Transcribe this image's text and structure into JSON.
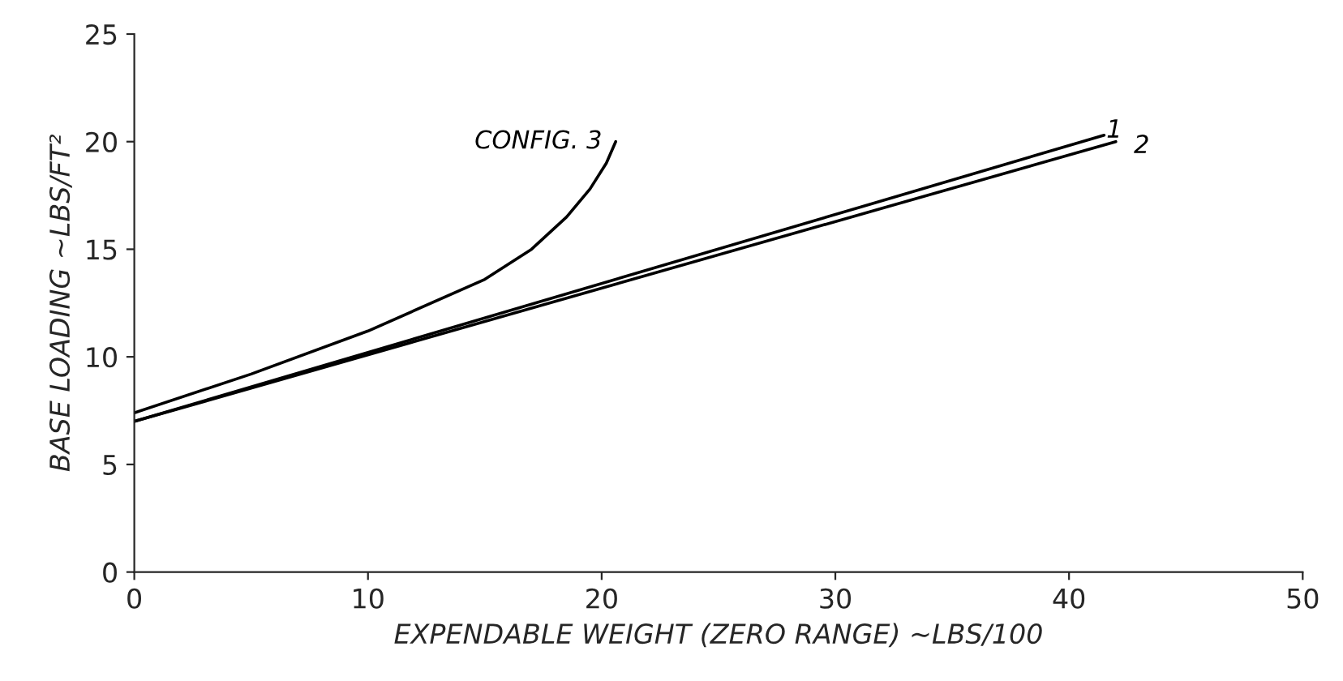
{
  "chart_data": {
    "type": "line",
    "xlabel": "EXPENDABLE WEIGHT (ZERO RANGE) ~LBS/100",
    "ylabel": "BASE LOADING ~LBS/FT²",
    "xlim": [
      0,
      50
    ],
    "xticks": [
      0,
      10,
      20,
      30,
      40,
      50
    ],
    "ylim": [
      0,
      25
    ],
    "yticks": [
      0,
      5,
      10,
      15,
      20,
      25
    ],
    "grid": false,
    "marker": "none",
    "line_style": "solid",
    "series": [
      {
        "name": "1",
        "color": "#000000",
        "x": [
          0,
          41.5
        ],
        "values": [
          7.0,
          20.3
        ]
      },
      {
        "name": "2",
        "color": "#000000",
        "x": [
          0,
          42
        ],
        "values": [
          7.0,
          20.0
        ]
      },
      {
        "name": "CONFIG. 3",
        "color": "#000000",
        "x": [
          0,
          5,
          10,
          15,
          17,
          18.5,
          19.5,
          20.2,
          20.6
        ],
        "values": [
          7.4,
          9.2,
          11.2,
          13.6,
          15,
          16.5,
          17.8,
          19,
          20
        ]
      }
    ]
  }
}
